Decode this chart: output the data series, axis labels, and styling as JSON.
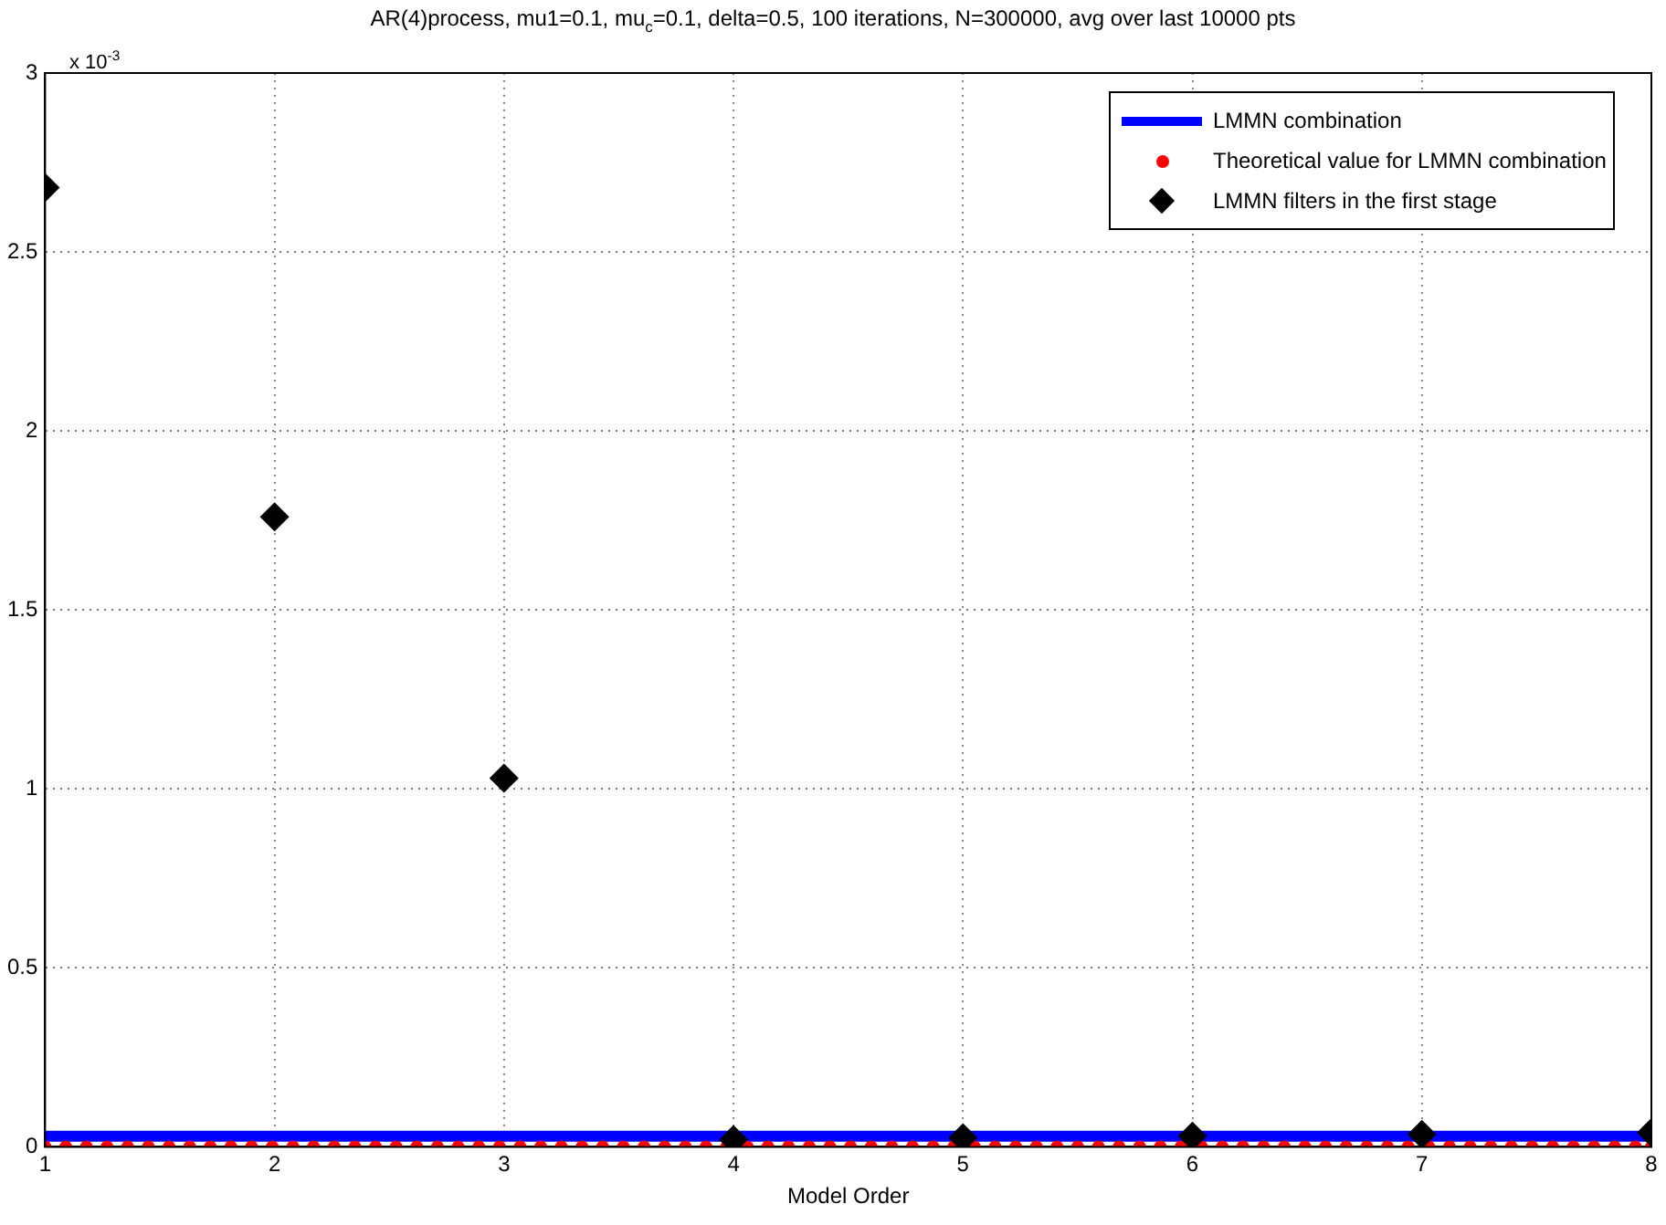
{
  "chart_data": {
    "type": "scatter",
    "title": "AR(4)process, mu1=0.1, mu$_{c}$=0.1, delta=0.5, 100 iterations, N=300000, avg over last 10000 pts",
    "xlabel": "Model Order",
    "annotations": [
      "x 10$^{-3}$"
    ],
    "xlim": [
      1,
      8
    ],
    "xticks": [
      1,
      2,
      3,
      4,
      5,
      6,
      7,
      8
    ],
    "ylim": [
      0,
      3
    ],
    "yticks": [
      0,
      0.5,
      1,
      1.5,
      2,
      2.5,
      3
    ],
    "grid": true,
    "legend": "top right",
    "series": [
      {
        "name": "LMMN combination",
        "type": "line",
        "color": "#0000ff",
        "marker": "none",
        "line_style": "solid",
        "x": [
          1,
          8
        ],
        "values": [
          0.03,
          0.03
        ]
      },
      {
        "name": "Theoretical value for LMMN combination",
        "color": "#ff0000",
        "marker": "circle",
        "x": [
          1,
          1.09,
          1.18,
          1.27,
          1.36,
          1.45,
          1.54,
          1.63,
          1.72,
          1.81,
          1.9,
          1.99,
          2.08,
          2.17,
          2.26,
          2.35,
          2.44,
          2.53,
          2.62,
          2.71,
          2.8,
          2.89,
          2.98,
          3.07,
          3.16,
          3.25,
          3.34,
          3.43,
          3.52,
          3.61,
          3.7,
          3.79,
          3.88,
          3.97,
          4.06,
          4.15,
          4.24,
          4.33,
          4.42,
          4.51,
          4.6,
          4.69,
          4.78,
          4.87,
          4.96,
          5.05,
          5.14,
          5.23,
          5.32,
          5.41,
          5.5,
          5.59,
          5.68,
          5.77,
          5.86,
          5.95,
          6.04,
          6.13,
          6.22,
          6.31,
          6.4,
          6.49,
          6.58,
          6.67,
          6.76,
          6.85,
          6.94,
          7.03,
          7.12,
          7.21,
          7.3,
          7.39,
          7.48,
          7.57,
          7.66,
          7.75,
          7.84,
          7.93,
          8
        ],
        "values": [
          0,
          0,
          0,
          0,
          0,
          0,
          0,
          0,
          0,
          0,
          0,
          0,
          0,
          0,
          0,
          0,
          0,
          0,
          0,
          0,
          0,
          0,
          0,
          0,
          0,
          0,
          0,
          0,
          0,
          0,
          0,
          0,
          0,
          0,
          0,
          0,
          0,
          0,
          0,
          0,
          0,
          0,
          0,
          0,
          0,
          0,
          0,
          0,
          0,
          0,
          0,
          0,
          0,
          0,
          0,
          0,
          0,
          0,
          0,
          0,
          0,
          0,
          0,
          0,
          0,
          0,
          0,
          0,
          0,
          0,
          0,
          0,
          0,
          0,
          0,
          0,
          0,
          0,
          0
        ]
      },
      {
        "name": "LMMN filters in the first stage",
        "color": "#000000",
        "marker": "diamond",
        "x": [
          1,
          2,
          3,
          4,
          5,
          6,
          7,
          8
        ],
        "values": [
          2.68,
          1.76,
          1.03,
          0.02,
          0.025,
          0.03,
          0.035,
          0.04
        ]
      }
    ]
  }
}
